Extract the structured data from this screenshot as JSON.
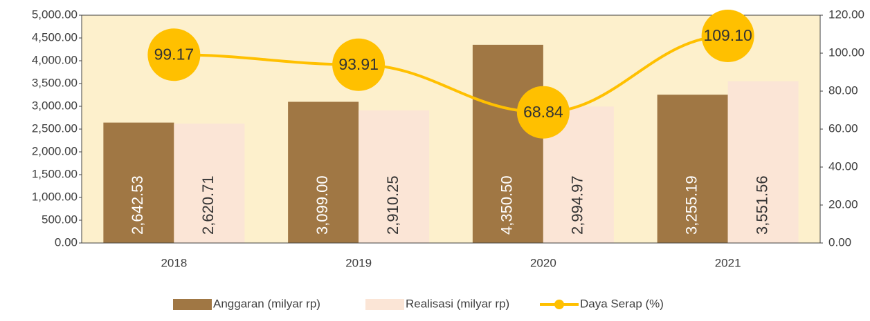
{
  "chart_data": {
    "type": "bar-line",
    "categories": [
      "2018",
      "2019",
      "2020",
      "2021"
    ],
    "series": [
      {
        "name": "Anggaran (milyar rp)",
        "type": "bar",
        "color": "#a07744",
        "values": [
          2642.53,
          3099.0,
          4350.5,
          3255.19
        ],
        "value_labels": [
          "2,642.53",
          "3,099.00",
          "4,350.50",
          "3,255.19"
        ]
      },
      {
        "name": "Realisasi (milyar rp)",
        "type": "bar",
        "color": "#fbe5d6",
        "values": [
          2620.71,
          2910.25,
          2994.97,
          3551.56
        ],
        "value_labels": [
          "2,620.71",
          "2,910.25",
          "2,994.97",
          "3,551.56"
        ]
      },
      {
        "name": "Daya Serap (%)",
        "type": "line",
        "axis": "y2",
        "color": "#ffc000",
        "values": [
          99.17,
          93.91,
          68.84,
          109.1
        ],
        "value_labels": [
          "99.17",
          "93.91",
          "68.84",
          "109.10"
        ]
      }
    ],
    "ylim": [
      0,
      5000
    ],
    "yticks": [
      {
        "value": 0,
        "label": "0.00"
      },
      {
        "value": 500,
        "label": "500.00"
      },
      {
        "value": 1000,
        "label": "1,000.00"
      },
      {
        "value": 1500,
        "label": "1,500.00"
      },
      {
        "value": 2000,
        "label": "2,000.00"
      },
      {
        "value": 2500,
        "label": "2,500.00"
      },
      {
        "value": 3000,
        "label": "3,000.00"
      },
      {
        "value": 3500,
        "label": "3,500.00"
      },
      {
        "value": 4000,
        "label": "4,000.00"
      },
      {
        "value": 4500,
        "label": "4,500.00"
      },
      {
        "value": 5000,
        "label": "5,000.00"
      }
    ],
    "y2lim": [
      0,
      120
    ],
    "y2ticks": [
      {
        "value": 0,
        "label": "0.00"
      },
      {
        "value": 20,
        "label": "20.00"
      },
      {
        "value": 40,
        "label": "40.00"
      },
      {
        "value": 60,
        "label": "60.00"
      },
      {
        "value": 80,
        "label": "80.00"
      },
      {
        "value": 100,
        "label": "100.00"
      },
      {
        "value": 120,
        "label": "120.00"
      }
    ],
    "plot_background": "#fdf0cc",
    "legend": "bottom"
  }
}
